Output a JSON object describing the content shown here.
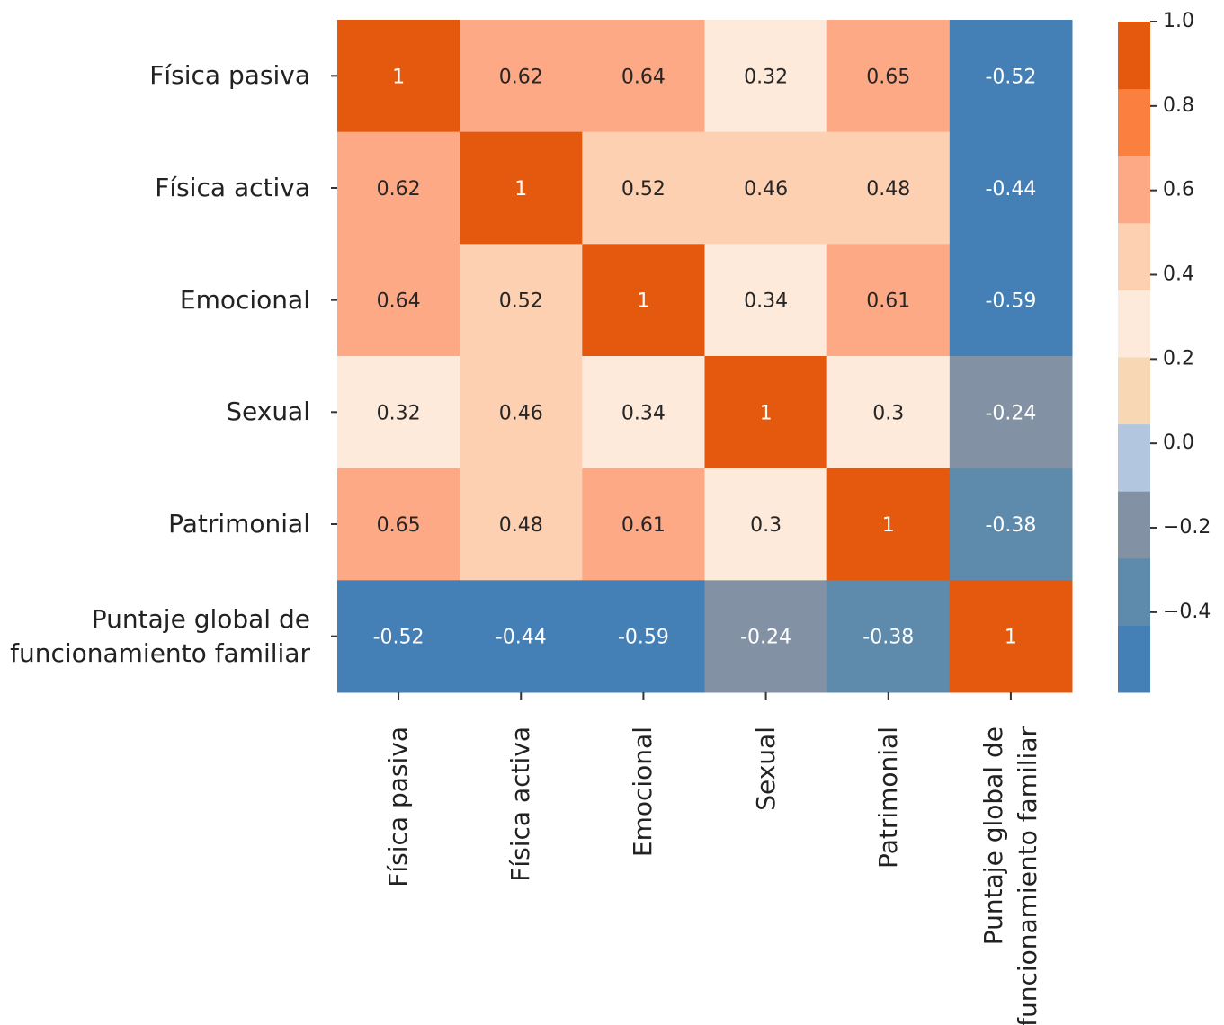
{
  "chart_data": {
    "type": "heatmap",
    "categories": [
      "Física pasiva",
      "Física activa",
      "Emocional",
      "Sexual",
      "Patrimonial",
      "Puntaje global de funcionamiento familiar"
    ],
    "values": [
      [
        1,
        0.62,
        0.64,
        0.32,
        0.65,
        -0.52
      ],
      [
        0.62,
        1,
        0.52,
        0.46,
        0.48,
        -0.44
      ],
      [
        0.64,
        0.52,
        1,
        0.34,
        0.61,
        -0.59
      ],
      [
        0.32,
        0.46,
        0.34,
        1,
        0.3,
        -0.24
      ],
      [
        0.65,
        0.48,
        0.61,
        0.3,
        1,
        -0.38
      ],
      [
        -0.52,
        -0.44,
        -0.59,
        -0.24,
        -0.38,
        1
      ]
    ],
    "colors": [
      "#447fb5",
      "#5e8bab",
      "#8292a4",
      "#b3c6e0",
      "#f8d7b4",
      "#feeadb",
      "#fed0b2",
      "#fda986",
      "#fb7f3e",
      "#e4590d"
    ],
    "zlim": [
      -0.59,
      1
    ],
    "zticks": [
      {
        "value": 1,
        "label": "1.0"
      },
      0.8,
      0.6,
      0.4,
      0.2,
      {
        "value": 0,
        "label": "0.0"
      },
      {
        "value": -0.2,
        "label": "−0.2"
      },
      {
        "value": -0.4,
        "label": "−0.4"
      }
    ]
  }
}
